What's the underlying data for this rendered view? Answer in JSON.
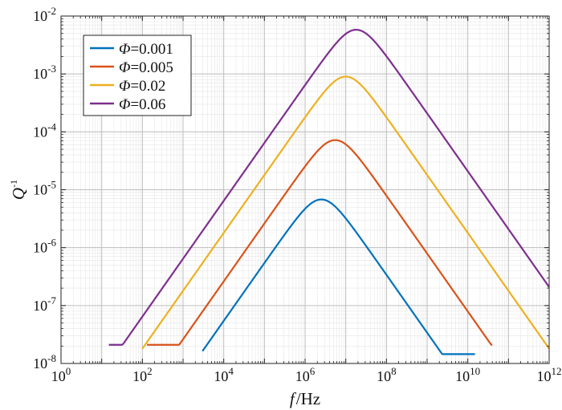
{
  "chart_data": {
    "type": "line",
    "title": "",
    "xlabel": {
      "italic": "f",
      "rest": "/Hz"
    },
    "ylabel": {
      "italic": "Q",
      "sup": "-1"
    },
    "xscale": "log",
    "yscale": "log",
    "xlim": [
      1,
      1000000000000
    ],
    "ylim": [
      1e-08,
      0.01
    ],
    "grid": true,
    "minor_grid": true,
    "legend_position": "top-left",
    "x_ticks": [
      {
        "base": "10",
        "exp": "0"
      },
      {
        "base": "10",
        "exp": "2"
      },
      {
        "base": "10",
        "exp": "4"
      },
      {
        "base": "10",
        "exp": "6"
      },
      {
        "base": "10",
        "exp": "8"
      },
      {
        "base": "10",
        "exp": "10"
      },
      {
        "base": "10",
        "exp": "12"
      }
    ],
    "y_ticks": [
      {
        "base": "10",
        "exp": "-8"
      },
      {
        "base": "10",
        "exp": "-7"
      },
      {
        "base": "10",
        "exp": "-6"
      },
      {
        "base": "10",
        "exp": "-5"
      },
      {
        "base": "10",
        "exp": "-4"
      },
      {
        "base": "10",
        "exp": "-3"
      },
      {
        "base": "10",
        "exp": "-2"
      }
    ],
    "series": [
      {
        "name": "Φ=0.001",
        "symbol": "Φ",
        "value_text": "=0.001",
        "color": "#0072BD",
        "peak_freq": 2500000,
        "peak_q": 6.8e-06,
        "floor_q": 1.45e-08,
        "x_start": 3000,
        "x_end": 15000000000
      },
      {
        "name": "Φ=0.005",
        "symbol": "Φ",
        "value_text": "=0.005",
        "color": "#D95319",
        "peak_freq": 5500000,
        "peak_q": 7.2e-05,
        "floor_q": 2.1e-08,
        "x_start": 130,
        "x_end": 40000000000
      },
      {
        "name": "Φ=0.02",
        "symbol": "Φ",
        "value_text": "=0.02",
        "color": "#EDB120",
        "peak_freq": 10000000,
        "peak_q": 0.0009,
        "floor_q": 1.45e-08,
        "x_start": 100,
        "x_end": 1000000000000
      },
      {
        "name": "Φ=0.06",
        "symbol": "Φ",
        "value_text": "=0.06",
        "color": "#7E2F8E",
        "peak_freq": 18000000,
        "peak_q": 0.0058,
        "floor_q": 2.1e-08,
        "x_start": 15,
        "x_end": 1000000000000
      }
    ]
  }
}
